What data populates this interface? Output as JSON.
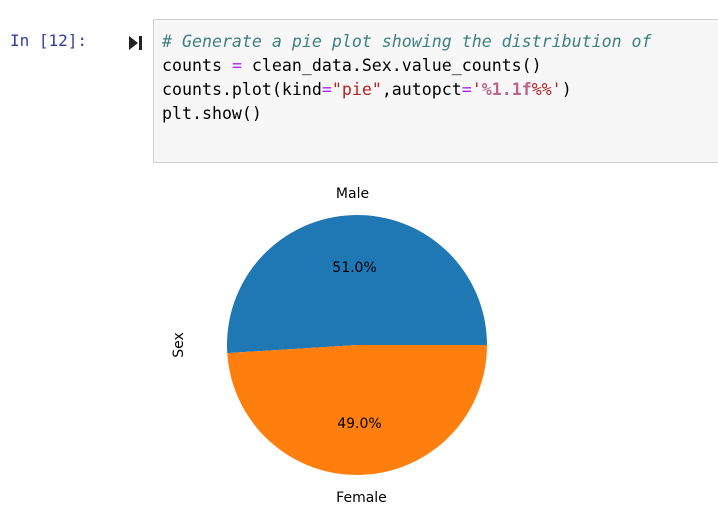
{
  "cell": {
    "prompt": "In [12]:",
    "code_lines": [
      [
        {
          "t": "# Generate a pie plot showing the distribution of",
          "c": "comment"
        }
      ],
      [
        {
          "t": "counts ",
          "c": ""
        },
        {
          "t": "=",
          "c": "op"
        },
        {
          "t": " clean_data.Sex.value_counts()",
          "c": ""
        }
      ],
      [
        {
          "t": "counts.plot(kind",
          "c": ""
        },
        {
          "t": "=",
          "c": "op"
        },
        {
          "t": "\"pie\"",
          "c": "str"
        },
        {
          "t": ",autopct",
          "c": ""
        },
        {
          "t": "=",
          "c": "op"
        },
        {
          "t": "'",
          "c": "str"
        },
        {
          "t": "%1.1f",
          "c": "strint"
        },
        {
          "t": "%%'",
          "c": "str"
        },
        {
          "t": ")",
          "c": ""
        }
      ],
      [
        {
          "t": "plt.show()",
          "c": ""
        }
      ]
    ]
  },
  "chart_data": {
    "type": "pie",
    "ylabel": "Sex",
    "slices": [
      {
        "label": "Male",
        "value": 51.0,
        "pct_label": "51.0%",
        "color": "#1f77b4"
      },
      {
        "label": "Female",
        "value": 49.0,
        "pct_label": "49.0%",
        "color": "#ff7f0e"
      }
    ]
  }
}
